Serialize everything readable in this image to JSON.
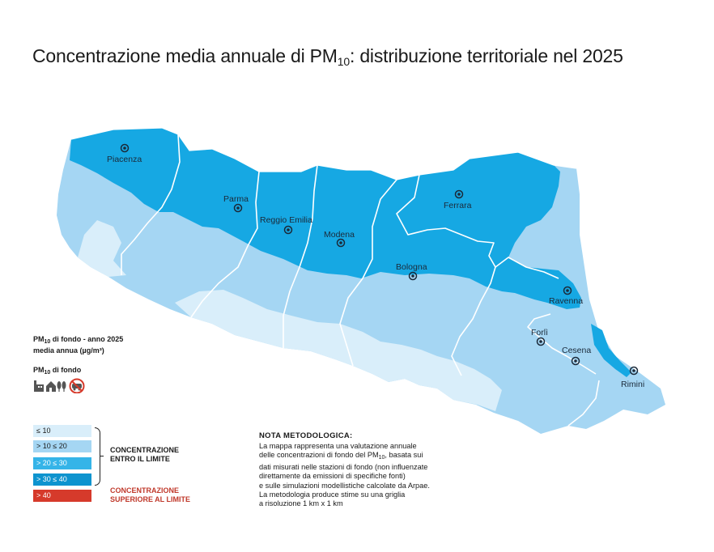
{
  "title": {
    "prefix": "Concentrazione media annuale di PM",
    "subscript": "10",
    "suffix": ": distribuzione territoriale nel 2025"
  },
  "cities": [
    {
      "name": "Piacenza"
    },
    {
      "name": "Parma"
    },
    {
      "name": "Reggio Emilia"
    },
    {
      "name": "Modena"
    },
    {
      "name": "Ferrara"
    },
    {
      "name": "Bologna"
    },
    {
      "name": "Ravenna"
    },
    {
      "name": "Forlì"
    },
    {
      "name": "Cesena"
    },
    {
      "name": "Rimini"
    }
  ],
  "legend": {
    "heading_pm": "PM",
    "heading_sub": "10",
    "heading_line1_rest": " di fondo - anno 2025",
    "heading_line2": "media annua (µg/m³)",
    "fondo_pm": "PM",
    "fondo_sub": "10",
    "fondo_rest": " di fondo",
    "icons": [
      "industry-icon",
      "house-icon",
      "trees-icon",
      "no-car-icon"
    ],
    "classes": [
      {
        "label": "≤ 10",
        "color": "#d9eefa",
        "text_color": "#1a1a1a"
      },
      {
        "label": "> 10 ≤ 20",
        "color": "#a5d6f3",
        "text_color": "#1a1a1a"
      },
      {
        "label": "> 20 ≤ 30",
        "color": "#35b4e8",
        "text_color": "#ffffff"
      },
      {
        "label": "> 30 ≤ 40",
        "color": "#0e94cf",
        "text_color": "#ffffff"
      },
      {
        "label": "> 40",
        "color": "#d63a2b",
        "text_color": "#ffffff"
      }
    ],
    "within_limit_line1": "CONCENTRAZIONE",
    "within_limit_line2": "ENTRO IL LIMITE",
    "above_limit_line1": "CONCENTRAZIONE",
    "above_limit_line2": "SUPERIORE AL LIMITE",
    "above_limit_color": "#c0392b"
  },
  "nota": {
    "title": "NOTA METODOLOGICA:",
    "line1": "La mappa rappresenta una valutazione annuale",
    "line2_a": "delle concentrazioni di fondo del PM",
    "line2_sub": "10",
    "line2_b": ", basata sui",
    "line3": "dati misurati nelle stazioni di fondo (non influenzate",
    "line4": "direttamente da emissioni di specifiche fonti)",
    "line5": "e sulle simulazioni modellistiche calcolate da Arpae.",
    "line6": "La metodologia produce stime su una griglia",
    "line7": "a risoluzione 1 km x 1 km"
  }
}
